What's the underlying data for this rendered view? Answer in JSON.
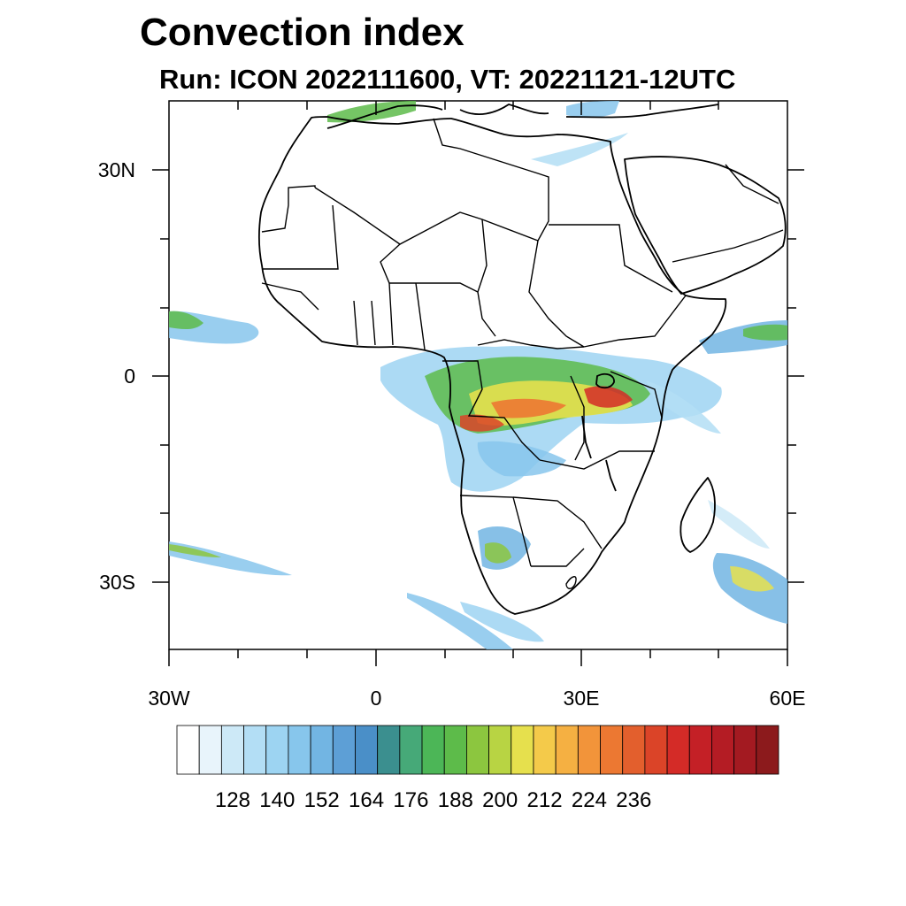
{
  "title": "Convection index",
  "subtitle": "Run: ICON 2022111600,  VT: 20221121-12UTC",
  "map": {
    "region": "Africa",
    "lat_ticks": [
      "30N",
      "0",
      "30S"
    ],
    "lon_ticks": [
      "30W",
      "0",
      "30E",
      "60E"
    ]
  },
  "colorbar": {
    "labels": [
      "128",
      "140",
      "152",
      "164",
      "176",
      "188",
      "200",
      "212",
      "224",
      "236"
    ],
    "colors": [
      "#ffffff",
      "#e8f4fb",
      "#cde9f7",
      "#b3def5",
      "#9dd4f2",
      "#87c6ec",
      "#72b5e3",
      "#5d9fd6",
      "#4a8fc8",
      "#3b8f8f",
      "#46a978",
      "#4cb657",
      "#5dbb4a",
      "#8cc63f",
      "#b8d443",
      "#e6e04d",
      "#f4ca4a",
      "#f5b042",
      "#f2943a",
      "#ec7832",
      "#e35f2d",
      "#db4428",
      "#d42b27",
      "#c42026",
      "#b41c24",
      "#a31a21",
      "#8c1a1c"
    ]
  }
}
